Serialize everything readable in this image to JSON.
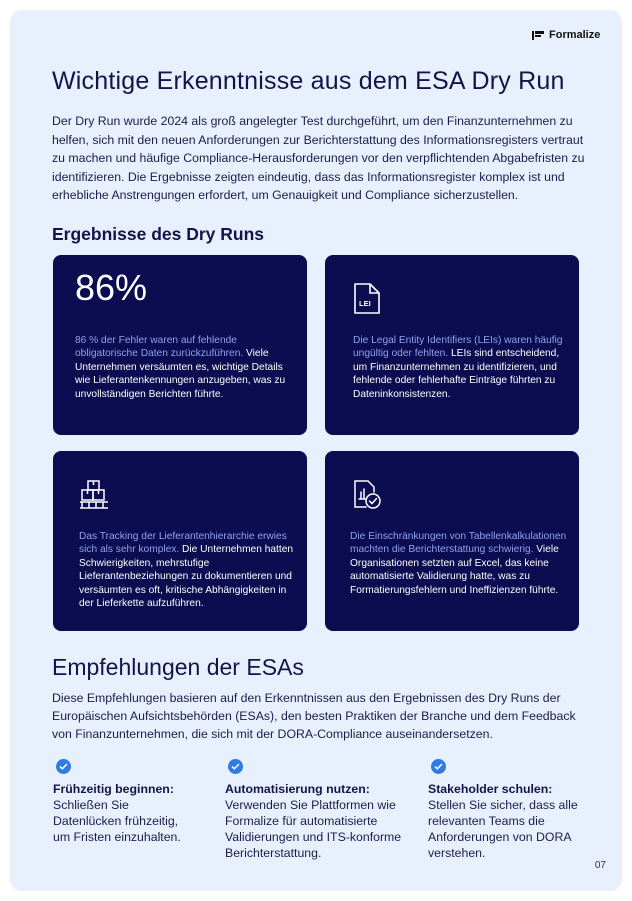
{
  "brand": {
    "name": "Formalize"
  },
  "title": "Wichtige Erkenntnisse aus dem ESA Dry Run",
  "intro": "Der Dry Run wurde 2024 als groß angelegter Test durchgeführt, um den Finanzunternehmen zu helfen, sich mit den neuen Anforderungen zur Berichterstattung des Informationsregisters vertraut zu machen und häufige Compliance-Herausforderungen vor den verpflichtenden Abgabefristen zu identifizieren. Die Ergebnisse zeigten eindeutig, dass das Informationsregister komplex ist und erhebliche Anstrengungen erfordert, um Genauigkeit und Compliance sicherzustellen.",
  "results": {
    "heading": "Ergebnisse des Dry Runs",
    "cards": [
      {
        "stat": "86%",
        "highlight": "86 % der Fehler waren auf fehlende obligatorische Daten zurückzuführen.",
        "body": " Viele Unternehmen versäumten es, wichtige Details wie Lieferantenkennungen anzugeben, was zu unvollständigen Berichten führte."
      },
      {
        "icon": "lei-document-icon",
        "icon_text": "LEI",
        "highlight": "Die Legal Entity Identifiers (LEIs) waren häufig ungültig oder fehlten.",
        "body": " LEIs sind entscheidend, um Finanzunternehmen zu identifizieren, und fehlende oder fehlerhafte Einträge führten zu Dateninkonsistenzen."
      },
      {
        "icon": "boxes-pallet-icon",
        "highlight": "Das Tracking der Lieferantenhierarchie erwies sich als sehr komplex.",
        "body": " Die Unternehmen hatten Schwierigkeiten, mehrstufige Lieferantenbeziehungen zu dokumentieren und versäumten es oft, kritische Abhängigkeiten in der Lieferkette aufzuführen."
      },
      {
        "icon": "report-check-icon",
        "highlight": "Die Einschränkungen von Tabellenkalkulationen machten die Berichterstattung schwierig.",
        "body": " Viele Organisationen setzten auf Excel, das keine automatisierte Validierung hatte, was zu Formatierungsfehlern und Ineffizienzen führte."
      }
    ]
  },
  "recommendations": {
    "heading": "Empfehlungen der ESAs",
    "intro": "Diese Empfehlungen basieren auf den Erkenntnissen aus den Ergebnissen des Dry Runs der Europäischen Aufsichtsbehörden (ESAs), den besten Praktiken der Branche und dem Feedback von Finanzunternehmen, die sich mit der DORA-Compliance auseinandersetzen.",
    "items": [
      {
        "title": "Frühzeitig beginnen:",
        "text": "Schließen Sie Datenlücken frühzeitig, um Fristen einzuhalten."
      },
      {
        "title": "Automatisierung nutzen:",
        "text": "Verwenden Sie Plattformen wie Formalize für automatisierte Validierungen und ITS-konforme Berichterstattung."
      },
      {
        "title": "Stakeholder schulen:",
        "text": "Stellen Sie sicher, dass alle relevanten Teams die Anforderungen von DORA verstehen."
      }
    ]
  },
  "page_number": "07",
  "colors": {
    "card": "#0c0c50",
    "highlight": "#8fa2ee",
    "check": "#2f7be6",
    "panel": "#e7f0fc"
  }
}
